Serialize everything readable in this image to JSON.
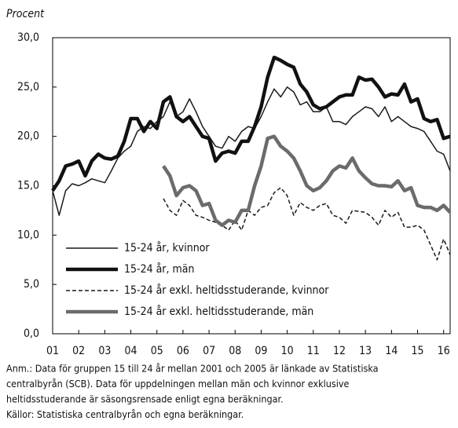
{
  "chart_data": {
    "type": "line",
    "ylabel": "Procent",
    "notes": [
      "Anm.: Data för gruppen 15 till 24 år mellan 2001 och 2005 är länkade av Statistiska",
      "centralbyrån (SCB). Data för uppdelningen mellan män och kvinnor exklusive",
      "heltidsstuderande är säsongsrensade enligt egna beräkningar.",
      "Källor: Statistiska centralbyrån och egna beräkningar."
    ],
    "x": [
      1.0,
      1.25,
      1.5,
      1.75,
      2.0,
      2.25,
      2.5,
      2.75,
      3.0,
      3.25,
      3.5,
      3.75,
      4.0,
      4.25,
      4.5,
      4.75,
      5.0,
      5.25,
      5.5,
      5.75,
      6.0,
      6.25,
      6.5,
      6.75,
      7.0,
      7.25,
      7.5,
      7.75,
      8.0,
      8.25,
      8.5,
      8.75,
      9.0,
      9.25,
      9.5,
      9.75,
      10.0,
      10.25,
      10.5,
      10.75,
      11.0,
      11.25,
      11.5,
      11.75,
      12.0,
      12.25,
      12.5,
      12.75,
      13.0,
      13.25,
      13.5,
      13.75,
      14.0,
      14.25,
      14.5,
      14.75,
      15.0,
      15.25,
      15.5,
      15.75,
      16.0,
      16.25
    ],
    "series": [
      {
        "name": "15-24 år, kvinnor",
        "color": "#1a1a1a",
        "style": "thin",
        "values": [
          14.5,
          12.0,
          14.5,
          15.2,
          15.0,
          15.3,
          15.7,
          15.5,
          15.3,
          16.5,
          17.8,
          18.5,
          19.0,
          20.5,
          21.0,
          20.8,
          21.5,
          22.0,
          23.5,
          22.0,
          22.5,
          23.8,
          22.5,
          21.0,
          20.0,
          19.0,
          18.8,
          20.0,
          19.5,
          20.5,
          21.0,
          20.8,
          22.0,
          23.5,
          24.8,
          24.0,
          25.0,
          24.5,
          23.2,
          23.5,
          22.5,
          22.5,
          23.0,
          21.5,
          21.5,
          21.2,
          22.0,
          22.5,
          23.0,
          22.8,
          22.0,
          23.0,
          21.5,
          22.0,
          21.5,
          21.0,
          20.8,
          20.5,
          19.5,
          18.5,
          18.2,
          16.5
        ]
      },
      {
        "name": "15-24 år, män",
        "color": "#111111",
        "style": "thick",
        "values": [
          14.5,
          15.5,
          17.0,
          17.2,
          17.5,
          16.0,
          17.5,
          18.2,
          17.8,
          17.7,
          18.0,
          19.5,
          21.8,
          21.8,
          20.5,
          21.5,
          20.8,
          23.5,
          24.0,
          22.0,
          21.5,
          22.0,
          21.0,
          20.0,
          19.8,
          17.5,
          18.3,
          18.5,
          18.3,
          19.5,
          19.5,
          21.0,
          23.0,
          26.0,
          28.0,
          27.7,
          27.3,
          27.0,
          25.3,
          24.5,
          23.2,
          22.8,
          23.0,
          23.5,
          24.0,
          24.2,
          24.2,
          26.0,
          25.7,
          25.8,
          25.0,
          24.0,
          24.3,
          24.2,
          25.3,
          23.5,
          23.8,
          21.8,
          21.5,
          21.7,
          19.8,
          20.0
        ]
      },
      {
        "name": "15-24 år exkl. heltidsstuderande, kvinnor",
        "color": "#1a1a1a",
        "style": "dashed",
        "values": [
          null,
          null,
          null,
          null,
          null,
          null,
          null,
          null,
          null,
          null,
          null,
          null,
          null,
          null,
          null,
          null,
          null,
          13.7,
          12.5,
          12.0,
          13.5,
          13.0,
          12.0,
          11.8,
          11.5,
          11.3,
          11.0,
          10.5,
          11.5,
          10.5,
          12.5,
          12.0,
          12.8,
          13.0,
          14.3,
          14.8,
          14.0,
          12.0,
          13.3,
          12.8,
          12.5,
          13.0,
          13.2,
          12.0,
          11.8,
          11.2,
          12.5,
          12.4,
          12.3,
          11.8,
          11.0,
          12.5,
          11.8,
          12.3,
          10.8,
          10.8,
          11.0,
          10.5,
          9.0,
          7.5,
          9.6,
          8.0
        ]
      },
      {
        "name": "15-24 år exkl. heltidsstuderande, män",
        "color": "#6b6b6b",
        "style": "thick",
        "values": [
          null,
          null,
          null,
          null,
          null,
          null,
          null,
          null,
          null,
          null,
          null,
          null,
          null,
          null,
          null,
          null,
          null,
          17.0,
          16.0,
          14.0,
          14.8,
          15.0,
          14.5,
          13.0,
          13.2,
          11.5,
          11.0,
          11.5,
          11.3,
          12.5,
          12.5,
          15.0,
          17.0,
          19.8,
          20.0,
          19.0,
          18.5,
          17.8,
          16.5,
          15.0,
          14.5,
          14.8,
          15.5,
          16.5,
          17.0,
          16.8,
          17.8,
          16.5,
          15.8,
          15.2,
          15.0,
          15.0,
          14.9,
          15.5,
          14.5,
          14.8,
          13.0,
          12.8,
          12.8,
          12.5,
          13.0,
          12.3
        ]
      }
    ],
    "xlim": [
      1,
      16.25
    ],
    "xticks": [
      {
        "value": 1,
        "label": "01"
      },
      {
        "value": 2,
        "label": "02"
      },
      {
        "value": 3,
        "label": "03"
      },
      {
        "value": 4,
        "label": "04"
      },
      {
        "value": 5,
        "label": "05"
      },
      {
        "value": 6,
        "label": "06"
      },
      {
        "value": 7,
        "label": "07"
      },
      {
        "value": 8,
        "label": "08"
      },
      {
        "value": 9,
        "label": "09"
      },
      {
        "value": 10,
        "label": "10"
      },
      {
        "value": 11,
        "label": "11"
      },
      {
        "value": 12,
        "label": "12"
      },
      {
        "value": 13,
        "label": "13"
      },
      {
        "value": 14,
        "label": "14"
      },
      {
        "value": 15,
        "label": "15"
      },
      {
        "value": 16,
        "label": "16"
      }
    ],
    "ylim": [
      0,
      30
    ],
    "yticks": [
      {
        "value": 0,
        "label": "0,0"
      },
      {
        "value": 5,
        "label": "5,0"
      },
      {
        "value": 10,
        "label": "10,0"
      },
      {
        "value": 15,
        "label": "15,0"
      },
      {
        "value": 20,
        "label": "20,0"
      },
      {
        "value": 25,
        "label": "25,0"
      },
      {
        "value": 30,
        "label": "30,0"
      }
    ],
    "grid": false,
    "legend": "lower left"
  }
}
